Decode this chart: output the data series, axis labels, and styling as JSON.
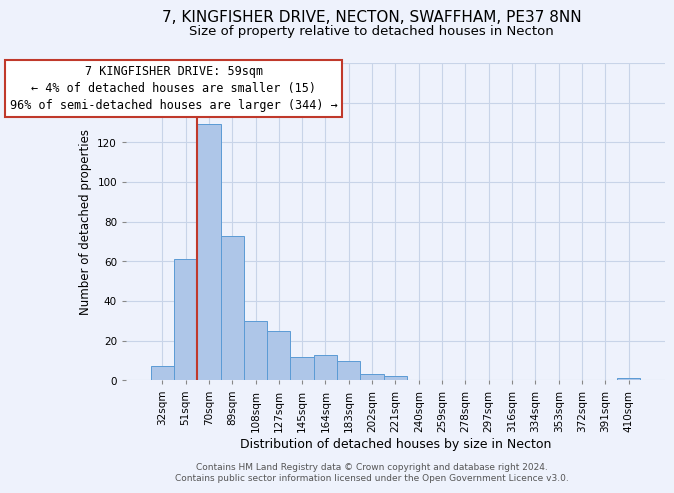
{
  "title": "7, KINGFISHER DRIVE, NECTON, SWAFFHAM, PE37 8NN",
  "subtitle": "Size of property relative to detached houses in Necton",
  "xlabel": "Distribution of detached houses by size in Necton",
  "ylabel": "Number of detached properties",
  "bar_labels": [
    "32sqm",
    "51sqm",
    "70sqm",
    "89sqm",
    "108sqm",
    "127sqm",
    "145sqm",
    "164sqm",
    "183sqm",
    "202sqm",
    "221sqm",
    "240sqm",
    "259sqm",
    "278sqm",
    "297sqm",
    "316sqm",
    "334sqm",
    "353sqm",
    "372sqm",
    "391sqm",
    "410sqm"
  ],
  "bar_values": [
    7,
    61,
    129,
    73,
    30,
    25,
    12,
    13,
    10,
    3,
    2,
    0,
    0,
    0,
    0,
    0,
    0,
    0,
    0,
    0,
    1
  ],
  "bar_color": "#aec6e8",
  "bar_edgecolor": "#5b9bd5",
  "vline_color": "#c0392b",
  "ylim": [
    0,
    160
  ],
  "yticks": [
    0,
    20,
    40,
    60,
    80,
    100,
    120,
    140,
    160
  ],
  "annotation_title": "7 KINGFISHER DRIVE: 59sqm",
  "annotation_line1": "← 4% of detached houses are smaller (15)",
  "annotation_line2": "96% of semi-detached houses are larger (344) →",
  "annotation_box_facecolor": "#ffffff",
  "annotation_box_edgecolor": "#c0392b",
  "footer1": "Contains HM Land Registry data © Crown copyright and database right 2024.",
  "footer2": "Contains public sector information licensed under the Open Government Licence v3.0.",
  "bg_color": "#eef2fc",
  "grid_color": "#c8d4e8",
  "title_fontsize": 11,
  "subtitle_fontsize": 9.5,
  "xlabel_fontsize": 9,
  "ylabel_fontsize": 8.5,
  "tick_fontsize": 7.5,
  "annotation_fontsize": 8.5,
  "footer_fontsize": 6.5
}
